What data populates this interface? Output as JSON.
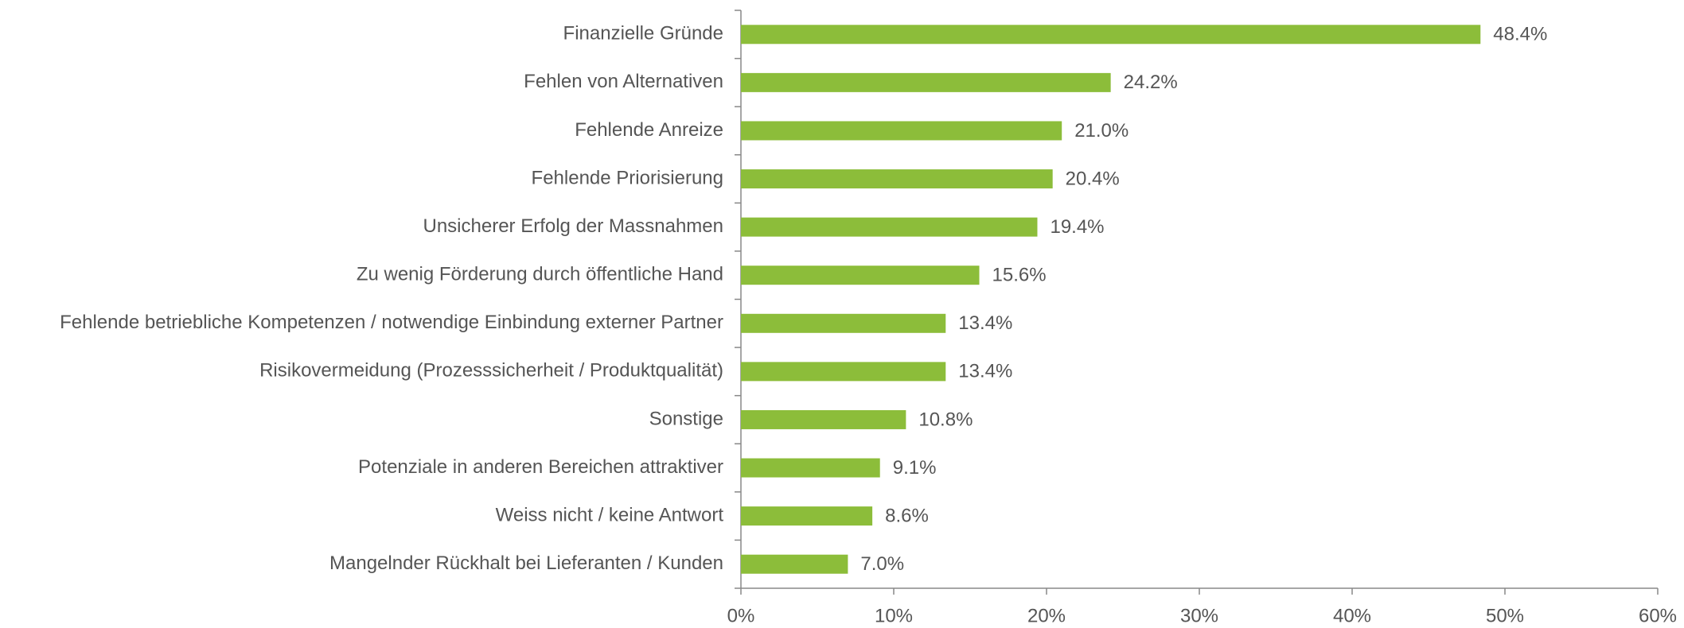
{
  "chart_data": {
    "type": "bar",
    "orientation": "horizontal",
    "categories": [
      "Finanzielle Gründe",
      "Fehlen von Alternativen",
      "Fehlende Anreize",
      "Fehlende Priorisierung",
      "Unsicherer Erfolg der Massnahmen",
      "Zu wenig Förderung durch öffentliche Hand",
      "Fehlende betriebliche Kompetenzen / notwendige Einbindung externer Partner",
      "Risikovermeidung (Prozesssicherheit / Produktqualität)",
      "Sonstige",
      "Potenziale in anderen Bereichen attraktiver",
      "Weiss nicht / keine Antwort",
      "Mangelnder Rückhalt bei Lieferanten / Kunden"
    ],
    "values": [
      48.4,
      24.2,
      21.0,
      20.4,
      19.4,
      15.6,
      13.4,
      13.4,
      10.8,
      9.1,
      8.6,
      7.0
    ],
    "value_labels": [
      "48.4%",
      "24.2%",
      "21.0%",
      "20.4%",
      "19.4%",
      "15.6%",
      "13.4%",
      "13.4%",
      "10.8%",
      "9.1%",
      "8.6%",
      "7.0%"
    ],
    "color": "#8cbd3a",
    "xlim": [
      0,
      60
    ],
    "xticks": [
      {
        "value": 0,
        "label": "0%"
      },
      {
        "value": 10,
        "label": "10%"
      },
      {
        "value": 20,
        "label": "20%"
      },
      {
        "value": 30,
        "label": "30%"
      },
      {
        "value": 40,
        "label": "40%"
      },
      {
        "value": 50,
        "label": "50%"
      },
      {
        "value": 60,
        "label": "60%"
      }
    ],
    "grid": false
  }
}
